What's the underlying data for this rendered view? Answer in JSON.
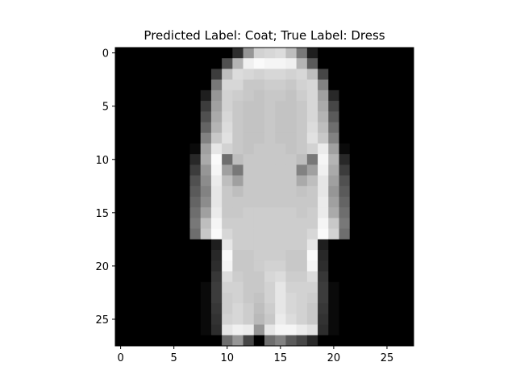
{
  "chart_data": {
    "type": "heatmap",
    "title": "Predicted Label: Coat; True Label: Dress",
    "colormap": "gray",
    "value_range": [
      0,
      255
    ],
    "rows": 28,
    "cols": 28,
    "xticks": [
      "0",
      "5",
      "10",
      "15",
      "20",
      "25"
    ],
    "yticks": [
      "0",
      "5",
      "10",
      "15",
      "20",
      "25"
    ],
    "pixels": [
      [
        0,
        0,
        0,
        0,
        0,
        0,
        0,
        0,
        0,
        0,
        0,
        45,
        150,
        210,
        215,
        220,
        190,
        120,
        30,
        0,
        0,
        0,
        0,
        0,
        0,
        0,
        0,
        0
      ],
      [
        0,
        0,
        0,
        0,
        0,
        0,
        0,
        0,
        0,
        0,
        80,
        180,
        240,
        250,
        245,
        245,
        240,
        180,
        90,
        0,
        0,
        0,
        0,
        0,
        0,
        0,
        0,
        0
      ],
      [
        0,
        0,
        0,
        0,
        0,
        0,
        0,
        0,
        0,
        60,
        190,
        220,
        215,
        210,
        215,
        215,
        210,
        215,
        190,
        70,
        0,
        0,
        0,
        0,
        0,
        0,
        0,
        0
      ],
      [
        0,
        0,
        0,
        0,
        0,
        0,
        0,
        0,
        0,
        120,
        215,
        215,
        200,
        200,
        205,
        205,
        200,
        210,
        215,
        130,
        0,
        0,
        0,
        0,
        0,
        0,
        0,
        0
      ],
      [
        0,
        0,
        0,
        0,
        0,
        0,
        0,
        0,
        30,
        150,
        210,
        205,
        200,
        195,
        200,
        200,
        195,
        205,
        215,
        160,
        40,
        0,
        0,
        0,
        0,
        0,
        0,
        0
      ],
      [
        0,
        0,
        0,
        0,
        0,
        0,
        0,
        0,
        60,
        160,
        210,
        200,
        195,
        195,
        200,
        195,
        195,
        200,
        215,
        170,
        70,
        0,
        0,
        0,
        0,
        0,
        0,
        0
      ],
      [
        0,
        0,
        0,
        0,
        0,
        0,
        0,
        0,
        80,
        170,
        215,
        200,
        195,
        195,
        200,
        195,
        195,
        200,
        215,
        180,
        90,
        0,
        0,
        0,
        0,
        0,
        0,
        0
      ],
      [
        0,
        0,
        0,
        0,
        0,
        0,
        0,
        0,
        100,
        180,
        220,
        200,
        195,
        195,
        200,
        195,
        195,
        200,
        220,
        190,
        110,
        0,
        0,
        0,
        0,
        0,
        0,
        0
      ],
      [
        0,
        0,
        0,
        0,
        0,
        0,
        0,
        0,
        130,
        200,
        225,
        200,
        195,
        195,
        200,
        195,
        195,
        200,
        225,
        200,
        130,
        0,
        0,
        0,
        0,
        0,
        0,
        0
      ],
      [
        0,
        0,
        0,
        0,
        0,
        0,
        0,
        10,
        160,
        230,
        210,
        200,
        195,
        200,
        200,
        200,
        195,
        200,
        210,
        235,
        160,
        10,
        0,
        0,
        0,
        0,
        0,
        0
      ],
      [
        0,
        0,
        0,
        0,
        0,
        0,
        0,
        40,
        170,
        250,
        110,
        190,
        200,
        200,
        200,
        200,
        200,
        190,
        120,
        245,
        180,
        40,
        0,
        0,
        0,
        0,
        0,
        0
      ],
      [
        0,
        0,
        0,
        0,
        0,
        0,
        0,
        60,
        150,
        245,
        160,
        120,
        200,
        200,
        200,
        200,
        200,
        130,
        160,
        240,
        170,
        60,
        0,
        0,
        0,
        0,
        0,
        0
      ],
      [
        0,
        0,
        0,
        0,
        0,
        0,
        0,
        80,
        140,
        235,
        190,
        160,
        200,
        200,
        200,
        200,
        200,
        170,
        190,
        230,
        160,
        80,
        0,
        0,
        0,
        0,
        0,
        0
      ],
      [
        0,
        0,
        0,
        0,
        0,
        0,
        0,
        90,
        130,
        230,
        200,
        190,
        200,
        200,
        200,
        200,
        200,
        195,
        200,
        230,
        150,
        90,
        0,
        0,
        0,
        0,
        0,
        0
      ],
      [
        0,
        0,
        0,
        0,
        0,
        0,
        0,
        100,
        140,
        230,
        200,
        200,
        200,
        200,
        200,
        200,
        200,
        200,
        200,
        235,
        160,
        100,
        0,
        0,
        0,
        0,
        0,
        0
      ],
      [
        0,
        0,
        0,
        0,
        0,
        0,
        0,
        110,
        160,
        235,
        200,
        200,
        205,
        205,
        205,
        205,
        205,
        200,
        205,
        235,
        170,
        110,
        0,
        0,
        0,
        0,
        0,
        0
      ],
      [
        0,
        0,
        0,
        0,
        0,
        0,
        0,
        120,
        190,
        245,
        205,
        205,
        205,
        205,
        205,
        205,
        205,
        205,
        205,
        245,
        200,
        120,
        0,
        0,
        0,
        0,
        0,
        0
      ],
      [
        0,
        0,
        0,
        0,
        0,
        0,
        0,
        110,
        200,
        250,
        215,
        205,
        205,
        205,
        205,
        205,
        205,
        205,
        215,
        250,
        210,
        110,
        0,
        0,
        0,
        0,
        0,
        0
      ],
      [
        0,
        0,
        0,
        0,
        0,
        0,
        0,
        0,
        0,
        30,
        230,
        205,
        205,
        205,
        205,
        205,
        205,
        205,
        230,
        30,
        0,
        0,
        0,
        0,
        0,
        0,
        0,
        0
      ],
      [
        0,
        0,
        0,
        0,
        0,
        0,
        0,
        0,
        0,
        40,
        250,
        200,
        200,
        205,
        205,
        205,
        200,
        200,
        250,
        40,
        0,
        0,
        0,
        0,
        0,
        0,
        0,
        0
      ],
      [
        0,
        0,
        0,
        0,
        0,
        0,
        0,
        0,
        0,
        45,
        245,
        200,
        200,
        205,
        210,
        210,
        200,
        200,
        245,
        45,
        0,
        0,
        0,
        0,
        0,
        0,
        0,
        0
      ],
      [
        0,
        0,
        0,
        0,
        0,
        0,
        0,
        0,
        0,
        55,
        220,
        205,
        200,
        200,
        215,
        220,
        205,
        205,
        220,
        55,
        0,
        0,
        0,
        0,
        0,
        0,
        0,
        0
      ],
      [
        0,
        0,
        0,
        0,
        0,
        0,
        0,
        0,
        10,
        60,
        210,
        210,
        200,
        200,
        210,
        230,
        210,
        210,
        210,
        60,
        10,
        0,
        0,
        0,
        0,
        0,
        0,
        0
      ],
      [
        0,
        0,
        0,
        0,
        0,
        0,
        0,
        0,
        10,
        60,
        205,
        210,
        200,
        195,
        210,
        230,
        215,
        210,
        205,
        60,
        10,
        0,
        0,
        0,
        0,
        0,
        0,
        0
      ],
      [
        0,
        0,
        0,
        0,
        0,
        0,
        0,
        0,
        10,
        55,
        205,
        215,
        205,
        190,
        205,
        230,
        215,
        210,
        200,
        55,
        10,
        0,
        0,
        0,
        0,
        0,
        0,
        0
      ],
      [
        0,
        0,
        0,
        0,
        0,
        0,
        0,
        0,
        10,
        50,
        210,
        215,
        205,
        185,
        200,
        235,
        220,
        210,
        200,
        50,
        10,
        0,
        0,
        0,
        0,
        0,
        0,
        0
      ],
      [
        0,
        0,
        0,
        0,
        0,
        0,
        0,
        0,
        10,
        45,
        230,
        240,
        235,
        150,
        230,
        245,
        245,
        235,
        225,
        45,
        10,
        0,
        0,
        0,
        0,
        0,
        0,
        0
      ],
      [
        0,
        0,
        0,
        0,
        0,
        0,
        0,
        0,
        0,
        0,
        110,
        150,
        70,
        0,
        110,
        130,
        90,
        70,
        40,
        0,
        0,
        0,
        0,
        0,
        0,
        0,
        0,
        0
      ]
    ]
  }
}
